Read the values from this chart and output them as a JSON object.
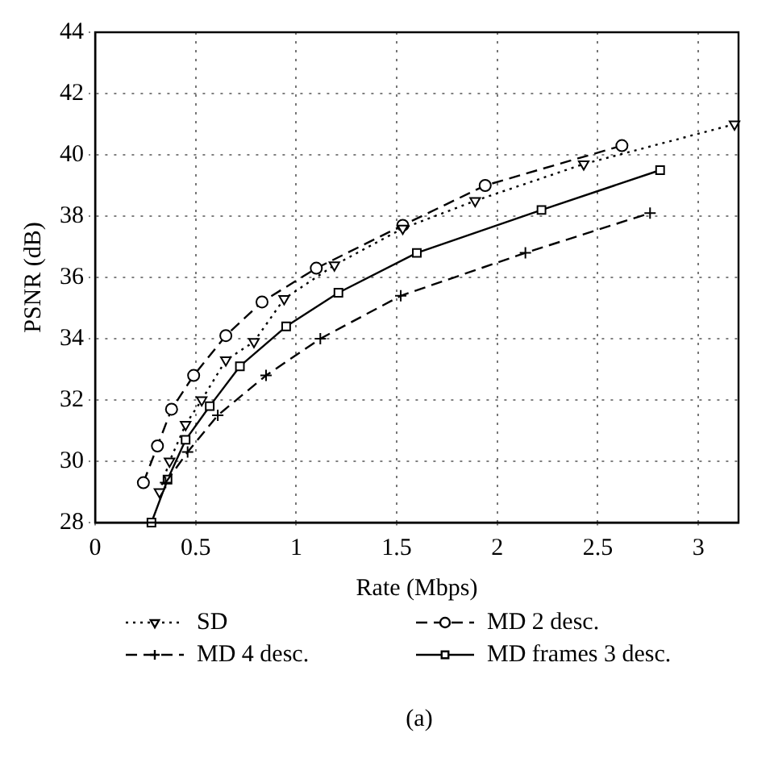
{
  "chart_data": {
    "type": "line",
    "xlabel": "Rate (Mbps)",
    "ylabel": "PSNR (dB)",
    "xlim": [
      0,
      3.2
    ],
    "xticks": [
      0,
      0.5,
      1,
      1.5,
      2,
      2.5,
      3
    ],
    "ylim": [
      28,
      44
    ],
    "yticks": [
      28,
      30,
      32,
      34,
      36,
      38,
      40,
      42,
      44
    ],
    "grid": true,
    "legend": "bottom",
    "annotations": [
      "(a)"
    ],
    "series": [
      {
        "name": "SD",
        "color": "#000000",
        "marker": "triangle",
        "line_style": "dotted",
        "x": [
          0.32,
          0.37,
          0.45,
          0.53,
          0.65,
          0.79,
          0.94,
          1.19,
          1.53,
          1.89,
          2.43,
          3.18
        ],
        "values": [
          29.0,
          30.0,
          31.2,
          32.0,
          33.3,
          33.9,
          35.3,
          36.4,
          37.6,
          38.5,
          39.7,
          41.0
        ]
      },
      {
        "name": "MD 2 desc.",
        "color": "#000000",
        "marker": "circle",
        "line_style": "dashed",
        "x": [
          0.24,
          0.31,
          0.38,
          0.49,
          0.65,
          0.83,
          1.1,
          1.53,
          1.94,
          2.62
        ],
        "values": [
          29.3,
          30.5,
          31.7,
          32.8,
          34.1,
          35.2,
          36.3,
          37.7,
          39.0,
          40.3
        ]
      },
      {
        "name": "MD 4 desc.",
        "color": "#000000",
        "marker": "cross",
        "line_style": "dashed",
        "x": [
          0.35,
          0.46,
          0.61,
          0.85,
          1.12,
          1.52,
          2.14,
          2.76
        ],
        "values": [
          29.3,
          30.3,
          31.5,
          32.8,
          34.0,
          35.4,
          36.8,
          38.1
        ]
      },
      {
        "name": "MD frames 3 desc.",
        "color": "#000000",
        "marker": "square",
        "line_style": "solid",
        "x": [
          0.28,
          0.36,
          0.45,
          0.57,
          0.72,
          0.95,
          1.21,
          1.6,
          2.22,
          2.81
        ],
        "values": [
          28.0,
          29.4,
          30.7,
          31.8,
          33.1,
          34.4,
          35.5,
          36.8,
          38.2,
          39.5
        ]
      }
    ]
  }
}
